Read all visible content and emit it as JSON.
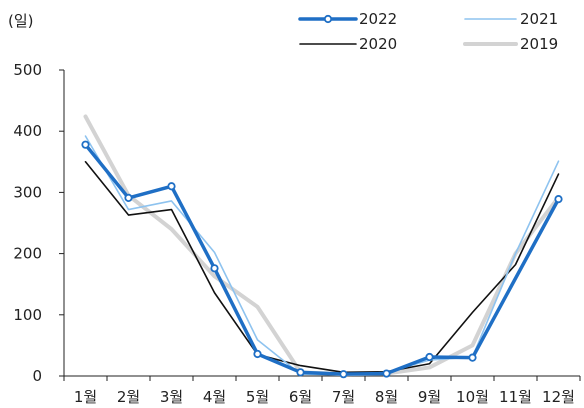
{
  "chart_data": {
    "type": "line",
    "ylabel": "(일)",
    "ylim": [
      0,
      500
    ],
    "yticks": [
      0,
      100,
      200,
      300,
      400,
      500
    ],
    "categories": [
      "1월",
      "2월",
      "3월",
      "4월",
      "5월",
      "6월",
      "7월",
      "8월",
      "9월",
      "10월",
      "11월",
      "12월"
    ],
    "legend": "top",
    "series": [
      {
        "name": "2022",
        "color": "#1f6fc5",
        "marker": true,
        "width": 3.5,
        "values": [
          378,
          291,
          310,
          176,
          36,
          6,
          3,
          4,
          31,
          30,
          null,
          289
        ]
      },
      {
        "name": "2021",
        "color": "#8ec3ef",
        "marker": false,
        "width": 1.6,
        "values": [
          392,
          272,
          286,
          202,
          59,
          3,
          2,
          6,
          26,
          31,
          200,
          351
        ]
      },
      {
        "name": "2020",
        "color": "#111111",
        "marker": false,
        "width": 1.6,
        "values": [
          350,
          263,
          272,
          136,
          35,
          17,
          6,
          7,
          20,
          104,
          182,
          330
        ]
      },
      {
        "name": "2019",
        "color": "#d3d3d3",
        "marker": false,
        "width": 4,
        "values": [
          424,
          295,
          240,
          163,
          113,
          6,
          3,
          4,
          14,
          50,
          200,
          292
        ]
      }
    ]
  }
}
